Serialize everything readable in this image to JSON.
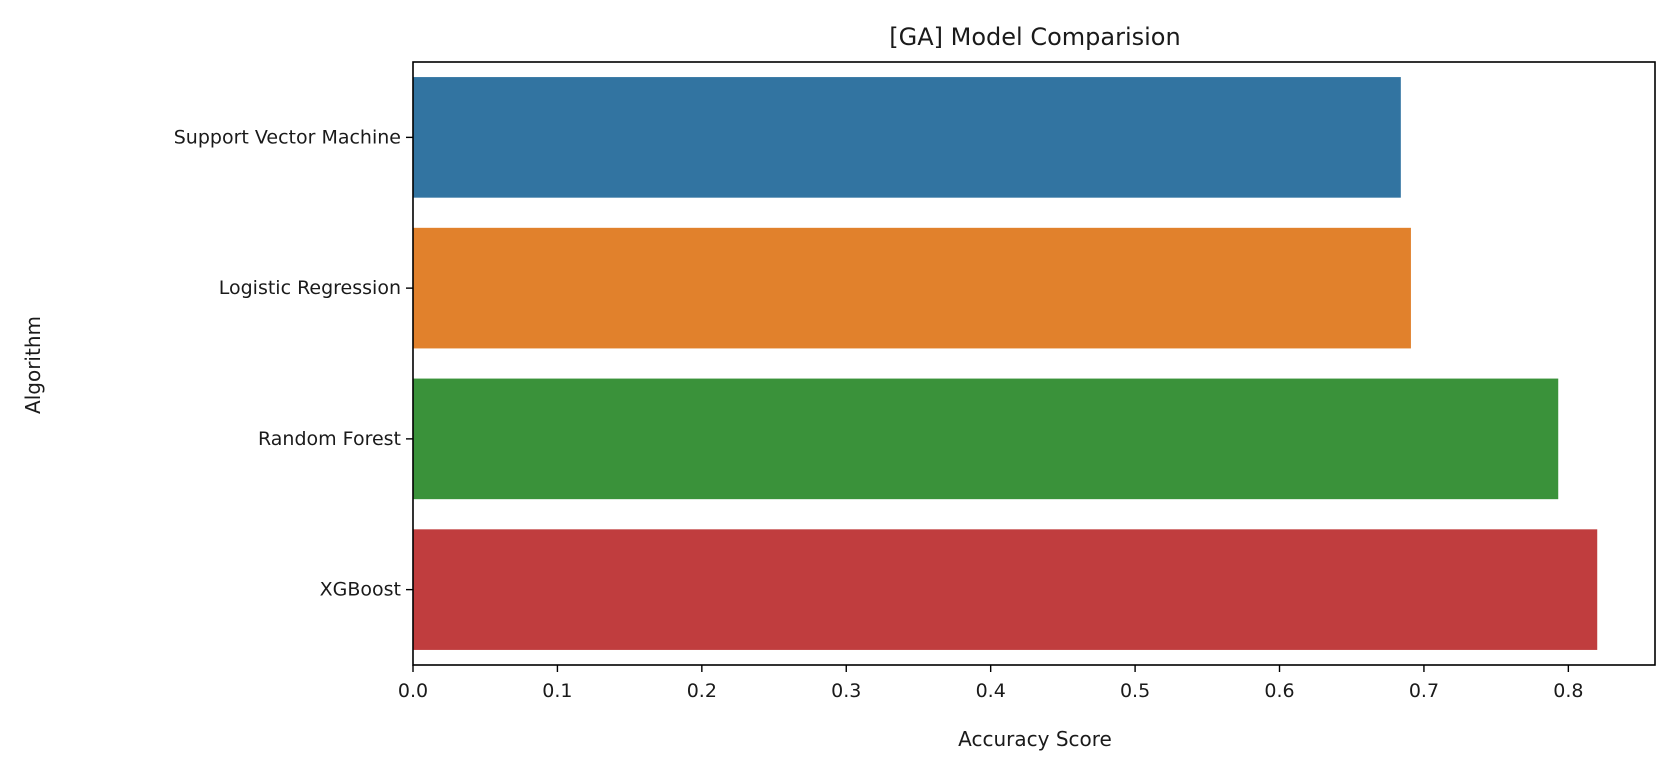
{
  "chart_data": {
    "type": "bar",
    "orientation": "horizontal",
    "title": "[GA] Model Comparision",
    "xlabel": "Accuracy Score",
    "ylabel": "Algorithm",
    "categories": [
      "Support Vector Machine",
      "Logistic Regression",
      "Random Forest",
      "XGBoost"
    ],
    "values": [
      0.684,
      0.691,
      0.793,
      0.82
    ],
    "colors": [
      "#3274a1",
      "#e1812c",
      "#3a923a",
      "#c03d3e"
    ],
    "xlim": [
      0.0,
      0.86
    ],
    "xticks": [
      0.0,
      0.1,
      0.2,
      0.3,
      0.4,
      0.5,
      0.6,
      0.7,
      0.8
    ],
    "xtick_labels": [
      "0.0",
      "0.1",
      "0.2",
      "0.3",
      "0.4",
      "0.5",
      "0.6",
      "0.7",
      "0.8"
    ],
    "grid": false,
    "legend": "none"
  }
}
